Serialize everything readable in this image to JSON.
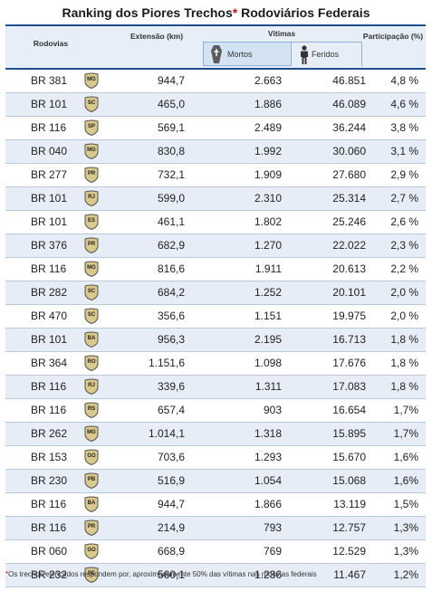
{
  "title": {
    "text": "Ranking dos Piores Trechos",
    "star": "*",
    "rest": " Rodoviários Federais"
  },
  "header": {
    "rodovias": "Rodovias",
    "extensao": "Extensão (km)",
    "vitimas": "Vítimas",
    "mortos": "Mortos",
    "feridos": "Feridos",
    "participacao": "Participação (%)"
  },
  "icons": {
    "mortos": "coffin-icon",
    "feridos": "injured-person-icon"
  },
  "colors": {
    "header_bg": "#e7eef7",
    "alt_row": "#e6edf6",
    "rule": "#1f4e8c",
    "star": "#d01010",
    "shield": "#d9c98a"
  },
  "rows": [
    {
      "br": "BR 381",
      "uf": "MG",
      "ext": "944,7",
      "mortos": "2.663",
      "feridos": "46.851",
      "part": "4,8 %"
    },
    {
      "br": "BR 101",
      "uf": "SC",
      "ext": "465,0",
      "mortos": "1.886",
      "feridos": "46.089",
      "part": "4,6 %"
    },
    {
      "br": "BR 116",
      "uf": "SP",
      "ext": "569,1",
      "mortos": "2.489",
      "feridos": "36.244",
      "part": "3,8 %"
    },
    {
      "br": "BR 040",
      "uf": "MG",
      "ext": "830,8",
      "mortos": "1.992",
      "feridos": "30.060",
      "part": "3,1 %"
    },
    {
      "br": "BR 277",
      "uf": "PR",
      "ext": "732,1",
      "mortos": "1.909",
      "feridos": "27.680",
      "part": "2,9 %"
    },
    {
      "br": "BR 101",
      "uf": "RJ",
      "ext": "599,0",
      "mortos": "2.310",
      "feridos": "25.314",
      "part": "2,7 %"
    },
    {
      "br": "BR 101",
      "uf": "ES",
      "ext": "461,1",
      "mortos": "1.802",
      "feridos": "25.246",
      "part": "2,6 %"
    },
    {
      "br": "BR 376",
      "uf": "PR",
      "ext": "682,9",
      "mortos": "1.270",
      "feridos": "22.022",
      "part": "2,3 %"
    },
    {
      "br": "BR 116",
      "uf": "MG",
      "ext": "816,6",
      "mortos": "1.911",
      "feridos": "20.613",
      "part": "2,2 %"
    },
    {
      "br": "BR 282",
      "uf": "SC",
      "ext": "684,2",
      "mortos": "1.252",
      "feridos": "20.101",
      "part": "2,0 %"
    },
    {
      "br": "BR 470",
      "uf": "SC",
      "ext": "356,6",
      "mortos": "1.151",
      "feridos": "19.975",
      "part": "2,0 %"
    },
    {
      "br": "BR 101",
      "uf": "BA",
      "ext": "956,3",
      "mortos": "2.195",
      "feridos": "16.713",
      "part": "1,8 %"
    },
    {
      "br": "BR 364",
      "uf": "RO",
      "ext": "1.151,6",
      "mortos": "1.098",
      "feridos": "17.676",
      "part": "1,8 %"
    },
    {
      "br": "BR 116",
      "uf": "RJ",
      "ext": "339,6",
      "mortos": "1.311",
      "feridos": "17.083",
      "part": "1,8 %"
    },
    {
      "br": "BR 116",
      "uf": "RS",
      "ext": "657,4",
      "mortos": "903",
      "feridos": "16.654",
      "part": "1,7%"
    },
    {
      "br": "BR 262",
      "uf": "MG",
      "ext": "1.014,1",
      "mortos": "1.318",
      "feridos": "15.895",
      "part": "1,7%"
    },
    {
      "br": "BR 153",
      "uf": "GO",
      "ext": "703,6",
      "mortos": "1.293",
      "feridos": "15.670",
      "part": "1,6%"
    },
    {
      "br": "BR 230",
      "uf": "PB",
      "ext": "516,9",
      "mortos": "1.054",
      "feridos": "15.068",
      "part": "1,6%"
    },
    {
      "br": "BR 116",
      "uf": "BA",
      "ext": "944,7",
      "mortos": "1.866",
      "feridos": "13.119",
      "part": "1,5%"
    },
    {
      "br": "BR 116",
      "uf": "PR",
      "ext": "214,9",
      "mortos": "793",
      "feridos": "12.757",
      "part": "1,3%"
    },
    {
      "br": "BR 060",
      "uf": "GO",
      "ext": "668,9",
      "mortos": "769",
      "feridos": "12.529",
      "part": "1,3%"
    },
    {
      "br": "BR 232",
      "uf": "PE",
      "ext": "560,1",
      "mortos": "1.236",
      "feridos": "11.467",
      "part": "1,2%"
    }
  ],
  "footnote": {
    "star": "*",
    "text": "Os trechos elencados respondem por, aproximadamente 50% das vítimas nas rodovias federais"
  }
}
